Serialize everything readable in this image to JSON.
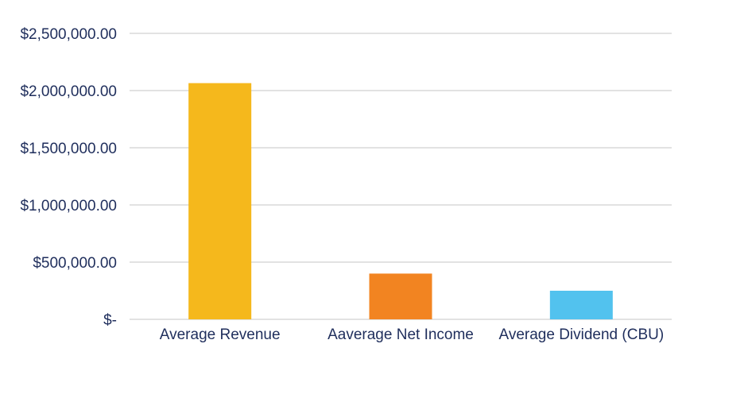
{
  "chart_data": {
    "type": "bar",
    "categories": [
      "Average Revenue",
      "Aaverage Net Income",
      "Average Dividend (CBU)"
    ],
    "values": [
      2065000,
      400000,
      250000
    ],
    "colors": [
      "#f5b81c",
      "#f28421",
      "#52c2ee"
    ],
    "ylim": [
      0,
      2500000
    ],
    "ytick_values": [
      0,
      500000,
      1000000,
      1500000,
      2000000,
      2500000
    ],
    "ytick_labels": [
      "$-",
      "$500,000.00",
      "$1,000,000.00",
      "$1,500,000.00",
      "$2,000,000.00",
      "$2,500,000.00"
    ],
    "grid": true,
    "legend": "none"
  }
}
